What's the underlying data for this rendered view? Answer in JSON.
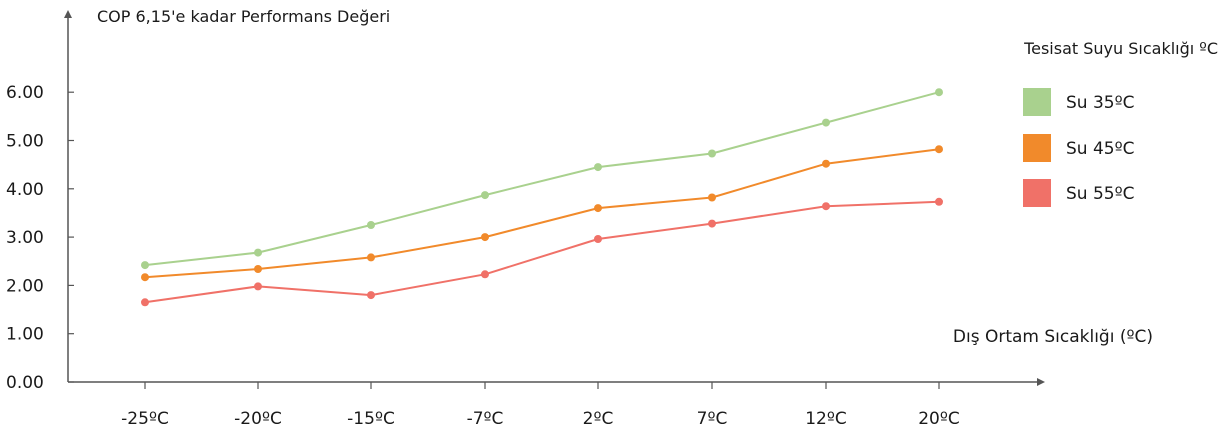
{
  "chart_data": {
    "type": "line",
    "title": "",
    "ylabel": "COP 6,15'e kadar Performans Değeri",
    "xlabel": "Dış Ortam Sıcaklığı (ºC)",
    "categories": [
      "-25ºC",
      "-20ºC",
      "-15ºC",
      "-7ºC",
      "2ºC",
      "7ºC",
      "12ºC",
      "20ºC"
    ],
    "yticks": [
      "0.00",
      "1.00",
      "2.00",
      "3.00",
      "4.00",
      "5.00",
      "6.00"
    ],
    "ylim": [
      0,
      6
    ],
    "grid": false,
    "legend": {
      "title": "Tesisat Suyu Sıcaklığı ºC",
      "position": "right"
    },
    "series": [
      {
        "name": "Su 35ºC",
        "color": "#a9d18e",
        "values": [
          2.42,
          2.68,
          3.25,
          3.87,
          4.45,
          4.73,
          5.37,
          6.0
        ]
      },
      {
        "name": "Su 45ºC",
        "color": "#f18a2b",
        "values": [
          2.17,
          2.34,
          2.58,
          3.0,
          3.6,
          3.82,
          4.52,
          4.82
        ]
      },
      {
        "name": "Su 55ºC",
        "color": "#f07168",
        "values": [
          1.65,
          1.98,
          1.8,
          2.23,
          2.96,
          3.28,
          3.64,
          3.73
        ]
      }
    ]
  }
}
